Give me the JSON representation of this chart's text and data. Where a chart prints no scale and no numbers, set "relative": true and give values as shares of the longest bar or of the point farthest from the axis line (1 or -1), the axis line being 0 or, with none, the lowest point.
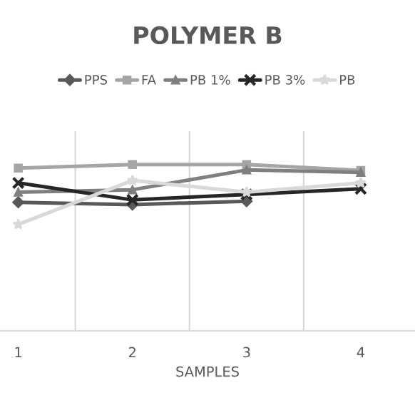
{
  "chart_data": {
    "type": "line",
    "title": "POLYMER B",
    "xlabel": "SAMPLES",
    "categories": [
      "1",
      "2",
      "3",
      "4"
    ],
    "relative": true,
    "grid": "x",
    "legend": "top",
    "series": [
      {
        "name": "PPS",
        "color": "#595959",
        "marker": "diamond",
        "values": [
          0.773,
          0.759,
          0.779,
          null
        ]
      },
      {
        "name": "FA",
        "color": "#a5a5a5",
        "marker": "square",
        "values": [
          0.978,
          1,
          1,
          0.964
        ]
      },
      {
        "name": "PB 1%",
        "color": "#7f7f7f",
        "marker": "triangle",
        "values": [
          0.834,
          0.848,
          0.967,
          0.953
        ]
      },
      {
        "name": "PB 3%",
        "color": "#262626",
        "marker": "cross",
        "values": [
          0.889,
          0.787,
          0.82,
          0.854
        ]
      },
      {
        "name": "PB",
        "color": "#d9d9d9",
        "marker": "star",
        "values": [
          0.64,
          0.904,
          0.834,
          0.889
        ]
      }
    ]
  }
}
